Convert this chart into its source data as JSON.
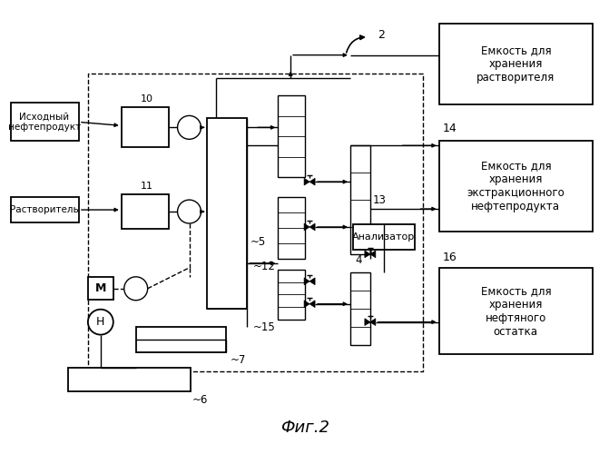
{
  "title": "Фиг.2",
  "bg": "#ffffff",
  "label_2": "2",
  "label_4": "4",
  "label_5": "~5",
  "label_6": "~6",
  "label_7": "~7",
  "label_10": "10",
  "label_11": "11",
  "label_12": "~12",
  "label_13": "13",
  "label_14": "14",
  "label_15": "~15",
  "label_16": "16",
  "txt_ishodny": "Исходный\nнефтепродукт",
  "txt_rastvori": "Растворитель",
  "txt_emk_r": "Емкость для\nхранения\nрастворителя",
  "txt_emk_e": "Емкость для\nхранения\nэкстракционного\nнефтепродукта",
  "txt_emk_n": "Емкость для\nхранения\nнефтяного\nостатка",
  "txt_anal": "Анализатор"
}
